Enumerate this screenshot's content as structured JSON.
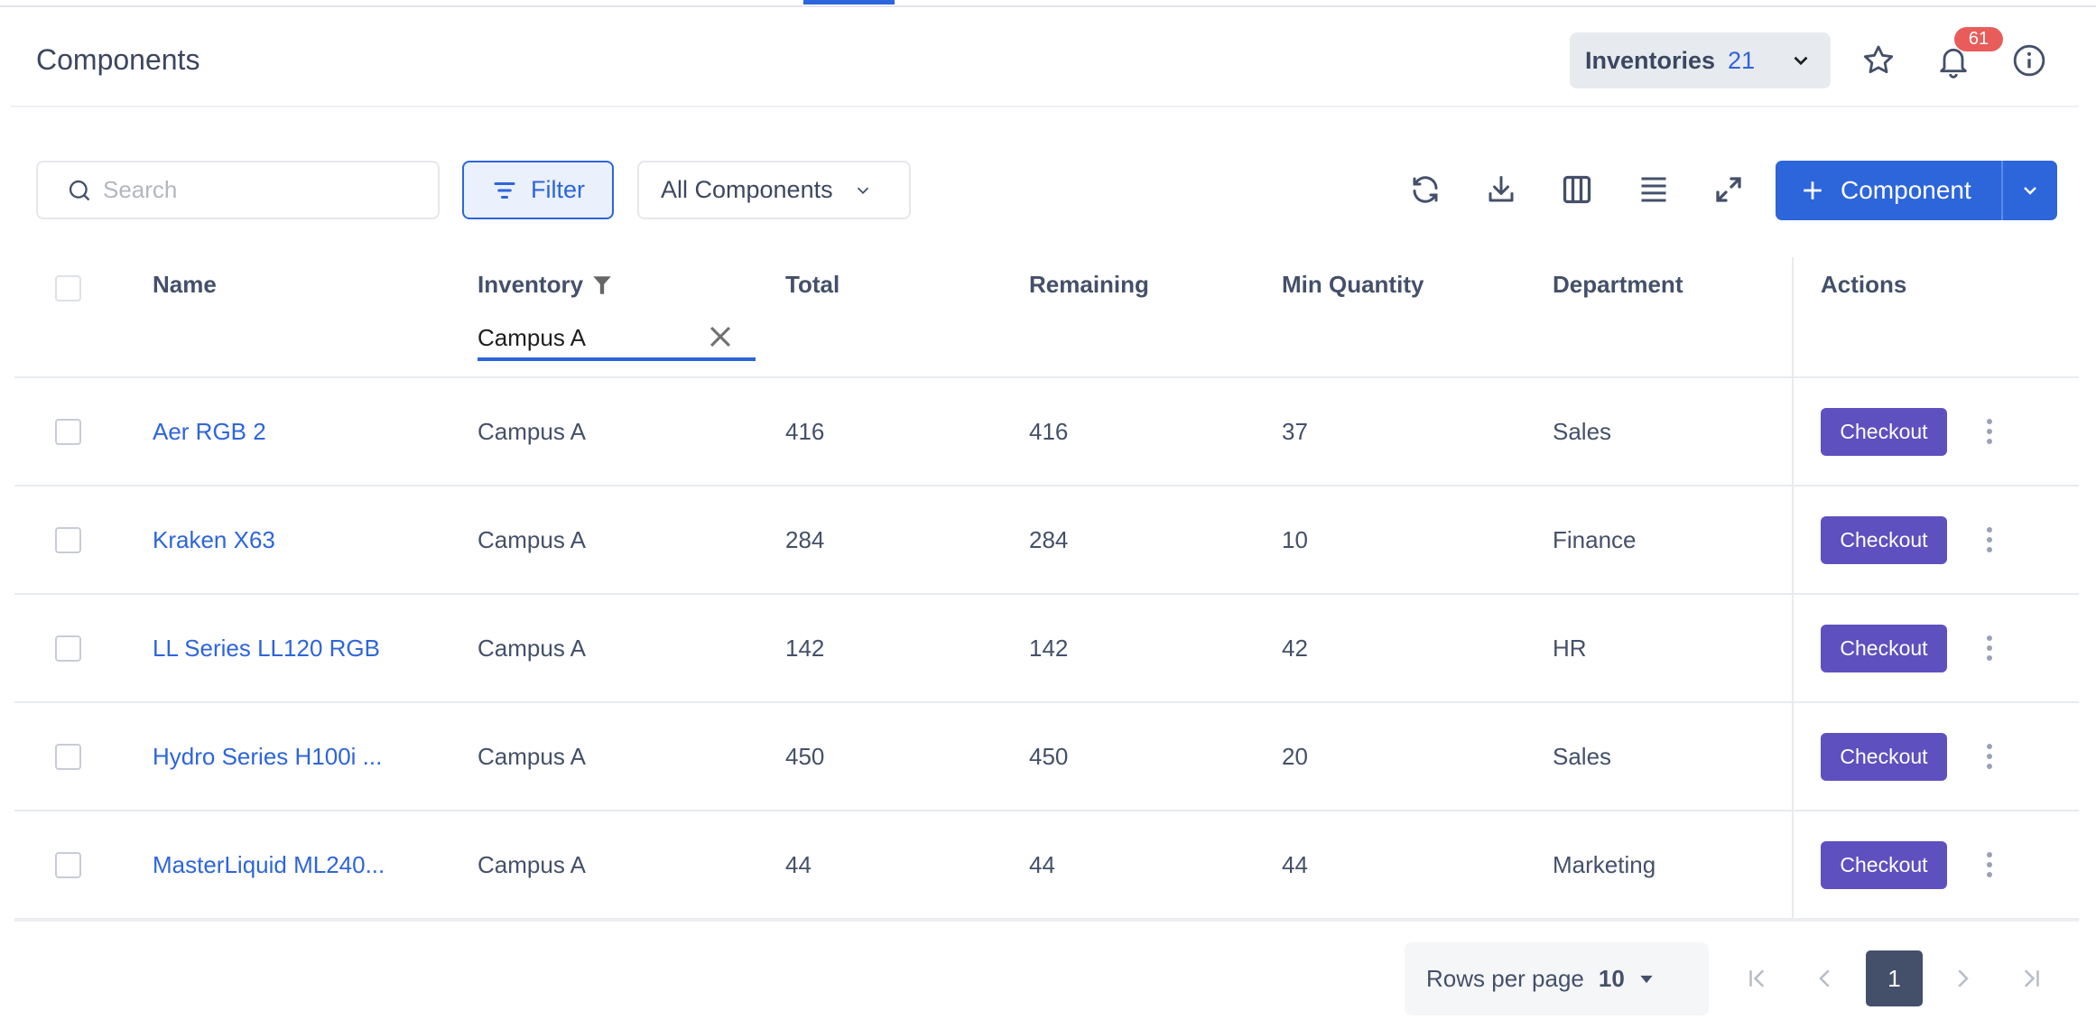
{
  "header": {
    "title": "Components",
    "inventories_label": "Inventories",
    "inventories_count": "21",
    "notification_count": "61"
  },
  "toolbar": {
    "search_placeholder": "Search",
    "filter_label": "Filter",
    "view_select": "All Components",
    "add_label": "Component"
  },
  "table": {
    "columns": [
      "Name",
      "Inventory",
      "Total",
      "Remaining",
      "Min Quantity",
      "Department",
      "Actions"
    ],
    "inventory_filter_value": "Campus A",
    "action_label": "Checkout",
    "rows": [
      {
        "name": "Aer RGB 2",
        "inventory": "Campus A",
        "total": "416",
        "remaining": "416",
        "min_quantity": "37",
        "department": "Sales"
      },
      {
        "name": "Kraken X63",
        "inventory": "Campus A",
        "total": "284",
        "remaining": "284",
        "min_quantity": "10",
        "department": "Finance"
      },
      {
        "name": "LL Series LL120 RGB",
        "inventory": "Campus A",
        "total": "142",
        "remaining": "142",
        "min_quantity": "42",
        "department": "HR"
      },
      {
        "name": "Hydro Series H100i ...",
        "inventory": "Campus A",
        "total": "450",
        "remaining": "450",
        "min_quantity": "20",
        "department": "Sales"
      },
      {
        "name": "MasterLiquid ML240...",
        "inventory": "Campus A",
        "total": "44",
        "remaining": "44",
        "min_quantity": "44",
        "department": "Marketing"
      }
    ]
  },
  "pagination": {
    "rows_per_page_label": "Rows per page",
    "rows_per_page": "10",
    "current_page": "1"
  },
  "colors": {
    "accent": "#2d65db",
    "checkout": "#5e50bf",
    "badge": "#e85d5a",
    "text": "#44506a"
  }
}
